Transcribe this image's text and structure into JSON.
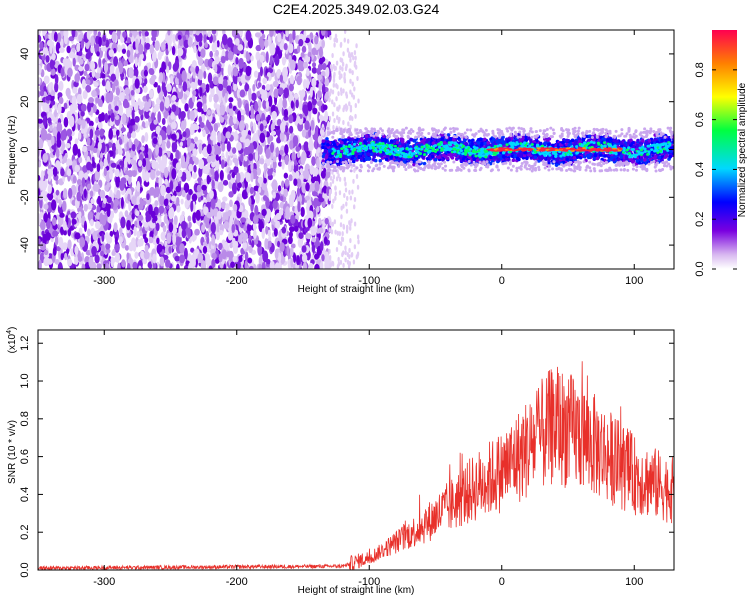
{
  "title": "C2E4.2025.349.02.03.G24",
  "chart_data": [
    {
      "type": "heatmap",
      "name": "spectrogram",
      "xlabel": "Height of straight line (km)",
      "ylabel": "Frequency (Hz)",
      "xlim": [
        -350,
        130
      ],
      "ylim": [
        -50,
        50
      ],
      "x_ticks": [
        -300,
        -200,
        -100,
        0,
        100
      ],
      "y_ticks": [
        -40,
        -20,
        0,
        20,
        40
      ],
      "colorbar": {
        "label": "Normalized spectral amplitude",
        "range": [
          0,
          1
        ],
        "ticks": [
          "0.0",
          "0.2",
          "0.4",
          "0.6",
          "0.8"
        ],
        "colormap": [
          "#ffffff",
          "#7a00e0",
          "#0000ff",
          "#00e0ff",
          "#00ff40",
          "#ffff00",
          "#ff8000",
          "#ff0040"
        ]
      },
      "features": {
        "noise_region_x": [
          -350,
          -130
        ],
        "signal_band_x": [
          -135,
          130
        ],
        "signal_center_freq_hz": 0,
        "signal_band_halfwidth_hz": 5
      }
    },
    {
      "type": "line",
      "name": "snr",
      "xlabel": "Height of straight line (km)",
      "ylabel": "SNR (10 * v/v)",
      "y_scale_label": "(x10",
      "y_scale_exp": "4",
      "xlim": [
        -350,
        130
      ],
      "ylim": [
        0,
        1.27
      ],
      "x_ticks": [
        -300,
        -200,
        -100,
        0,
        100
      ],
      "y_ticks": [
        "0.0",
        "0.2",
        "0.4",
        "0.6",
        "0.8",
        "1.0",
        "1.2"
      ],
      "color": "#e8302a",
      "series_trend": {
        "x": [
          -350,
          -120,
          -100,
          -80,
          -60,
          -40,
          -20,
          0,
          20,
          40,
          60,
          80,
          100,
          130
        ],
        "y": [
          0.01,
          0.02,
          0.06,
          0.14,
          0.22,
          0.32,
          0.42,
          0.5,
          0.62,
          0.74,
          0.68,
          0.58,
          0.48,
          0.4
        ]
      }
    }
  ]
}
